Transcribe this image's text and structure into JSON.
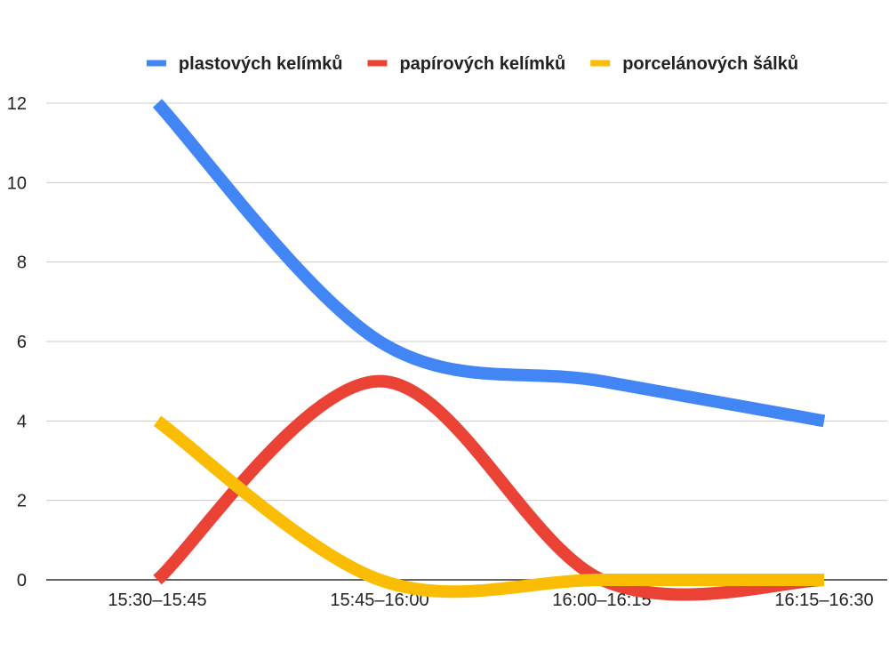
{
  "chart_data": {
    "type": "line",
    "smooth": true,
    "categories": [
      "15:30–15:45",
      "15:45–16:00",
      "16:00–16:15",
      "16:15–16:30"
    ],
    "series": [
      {
        "name": "plastových kelímků",
        "values": [
          12,
          6,
          5,
          4
        ],
        "color": "#4285F4"
      },
      {
        "name": "papírových kelímků",
        "values": [
          0,
          5,
          0,
          0
        ],
        "color": "#EA4335"
      },
      {
        "name": "porcelánových šálků",
        "values": [
          4,
          0,
          0,
          0
        ],
        "color": "#FBBC04"
      }
    ],
    "ylim": [
      0,
      12
    ],
    "yticks": [
      0,
      2,
      4,
      6,
      8,
      10,
      12
    ],
    "grid": true,
    "legend": "top"
  }
}
